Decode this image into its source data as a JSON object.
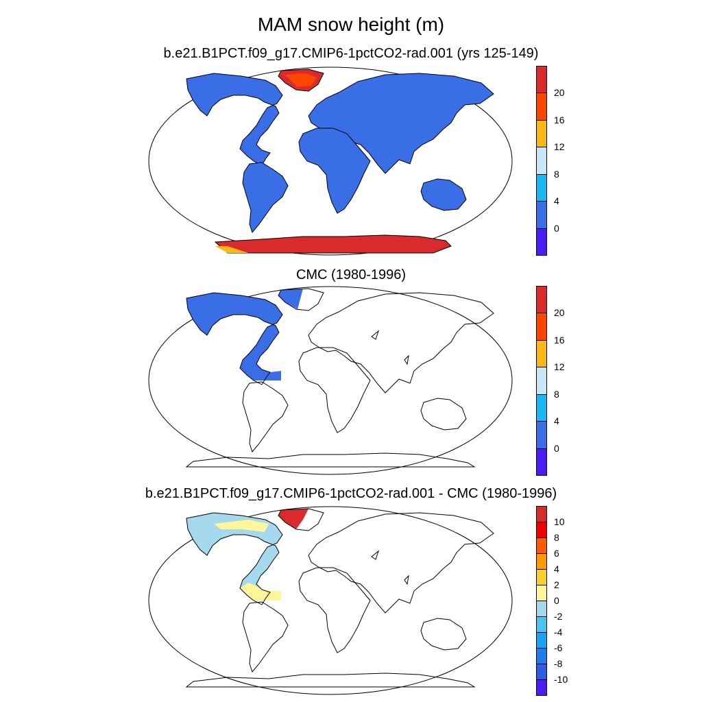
{
  "figure": {
    "title": "MAM snow height (m)"
  },
  "colors": {
    "land_model": "#3a6ee6",
    "ice_red": "#d92b2b",
    "diff_pos": "#fff59a",
    "diff_neg": "#a6d9ee"
  },
  "panels": [
    {
      "title": "b.e21.B1PCT.f09_g17.CMIP6-1pctCO2-rad.001 (yrs 125-149)",
      "colorbar": {
        "levels": [
          "0",
          "4",
          "8",
          "12",
          "16",
          "20"
        ],
        "colors": [
          "#4b1cf5",
          "#3a6ee6",
          "#1ab8f5",
          "#c8e8f7",
          "#fbb814",
          "#ff4500",
          "#d92b2b"
        ]
      }
    },
    {
      "title": "CMC (1980-1996)",
      "colorbar": {
        "levels": [
          "0",
          "4",
          "8",
          "12",
          "16",
          "20"
        ],
        "colors": [
          "#4b1cf5",
          "#3a6ee6",
          "#1ab8f5",
          "#c8e8f7",
          "#fbb814",
          "#ff4500",
          "#d92b2b"
        ]
      }
    },
    {
      "title": "b.e21.B1PCT.f09_g17.CMIP6-1pctCO2-rad.001 - CMC (1980-1996)",
      "colorbar": {
        "levels": [
          "-10",
          "-8",
          "-6",
          "-4",
          "-2",
          "0",
          "2",
          "4",
          "6",
          "8",
          "10"
        ],
        "colors": [
          "#4b1cf5",
          "#2d5de0",
          "#1e7de8",
          "#1aa3f5",
          "#4fc3f0",
          "#a6d9ee",
          "#fff59a",
          "#fbcf2a",
          "#ff9a00",
          "#ff5a00",
          "#f00000",
          "#d92b2b"
        ]
      }
    }
  ]
}
